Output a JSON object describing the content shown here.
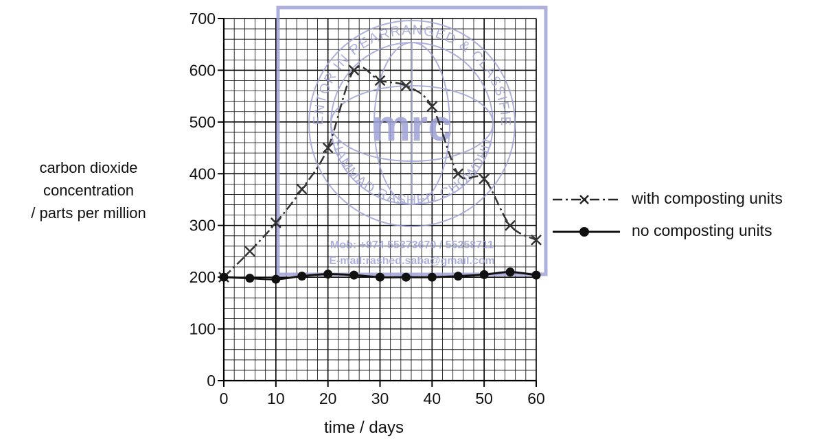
{
  "chart_data": {
    "type": "line",
    "xlabel": "time / days",
    "ylabel_lines": [
      "carbon dioxide",
      "concentration",
      "/ parts per million"
    ],
    "xlim": [
      0,
      60
    ],
    "ylim": [
      0,
      700
    ],
    "x_ticks": [
      0,
      10,
      20,
      30,
      40,
      50,
      60
    ],
    "y_ticks": [
      0,
      100,
      200,
      300,
      400,
      500,
      600,
      700
    ],
    "grid": true,
    "legend_position": "right",
    "series": [
      {
        "name": "with composting units",
        "marker": "x",
        "line_style": "dash-dot",
        "color": "#333333",
        "x": [
          0,
          5,
          10,
          15,
          20,
          25,
          30,
          35,
          40,
          45,
          50,
          55,
          60
        ],
        "y": [
          200,
          250,
          305,
          370,
          450,
          600,
          580,
          570,
          530,
          400,
          390,
          300,
          272
        ]
      },
      {
        "name": "no composting units",
        "marker": "filled-circle",
        "line_style": "solid",
        "color": "#111111",
        "x": [
          0,
          5,
          10,
          15,
          20,
          25,
          30,
          35,
          40,
          45,
          50,
          55,
          60
        ],
        "y": [
          200,
          198,
          196,
          202,
          206,
          204,
          200,
          200,
          200,
          202,
          205,
          210,
          204
        ]
      }
    ]
  },
  "watermark": {
    "arc_top": "MENTOR IN REARRANGED & CLASSIFIED",
    "arc_bottom": "MUHAMMAD RASHED CHOWDHURY",
    "center_logo": "mrc",
    "mob": "Mob: +974 55373670 / 55258711",
    "email": "E-mail:rashed.saba@gmail.com",
    "color": "#9fa3d6"
  }
}
